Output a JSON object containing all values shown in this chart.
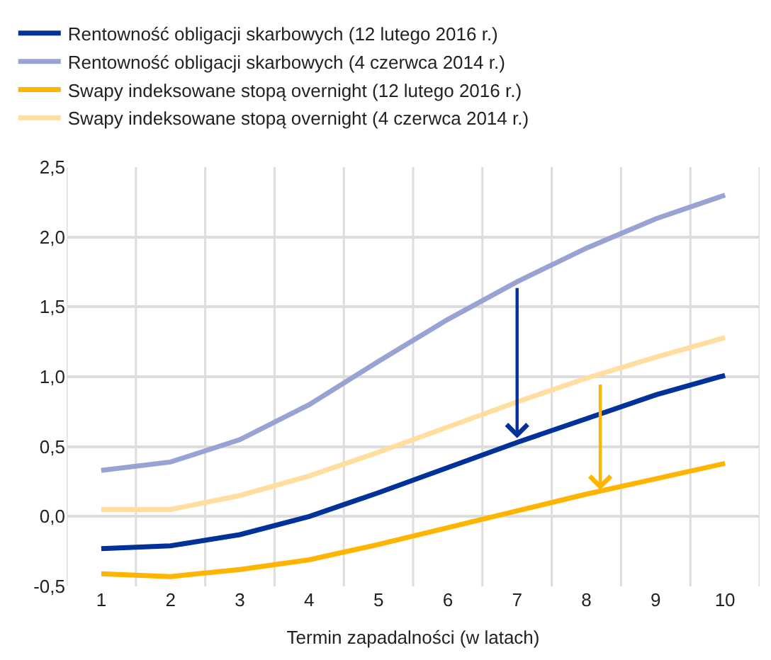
{
  "chart_data": {
    "type": "line",
    "xlabel": "Termin zapadalności (w latach)",
    "categories": [
      "1",
      "2",
      "3",
      "4",
      "5",
      "6",
      "7",
      "8",
      "9",
      "10"
    ],
    "series": [
      {
        "name": "Rentowność obligacji skarbowych (12 lutego 2016 r.)",
        "color": "#003299",
        "values": [
          -0.23,
          -0.21,
          -0.13,
          0.0,
          0.17,
          0.35,
          0.53,
          0.7,
          0.87,
          1.01
        ]
      },
      {
        "name": "Rentowność obligacji skarbowych (4 czerwca 2014 r.)",
        "color": "#99a3d3",
        "values": [
          0.33,
          0.39,
          0.55,
          0.8,
          1.11,
          1.41,
          1.68,
          1.92,
          2.13,
          2.3
        ]
      },
      {
        "name": "Swapy indeksowane stopą overnight (12 lutego 2016 r.)",
        "color": "#ffb400",
        "values": [
          -0.41,
          -0.43,
          -0.38,
          -0.31,
          -0.2,
          -0.08,
          0.04,
          0.16,
          0.27,
          0.38
        ]
      },
      {
        "name": "Swapy indeksowane stopą overnight (4 czerwca 2014 r.)",
        "color": "#ffdea0",
        "values": [
          0.05,
          0.05,
          0.15,
          0.29,
          0.46,
          0.64,
          0.82,
          0.99,
          1.14,
          1.28
        ]
      }
    ],
    "ylim": [
      -0.5,
      2.5
    ],
    "yticks": [
      {
        "value": -0.5,
        "label": "-0,5"
      },
      {
        "value": 0,
        "label": "0,0"
      },
      {
        "value": 0.5,
        "label": "0,5"
      },
      {
        "value": 1,
        "label": "1,0"
      },
      {
        "value": 1.5,
        "label": "1,5"
      },
      {
        "value": 2,
        "label": "2,0"
      },
      {
        "value": 2.5,
        "label": "2,5"
      }
    ],
    "grid": true,
    "legend": "top left",
    "marker": "none",
    "line_style": "solid"
  }
}
